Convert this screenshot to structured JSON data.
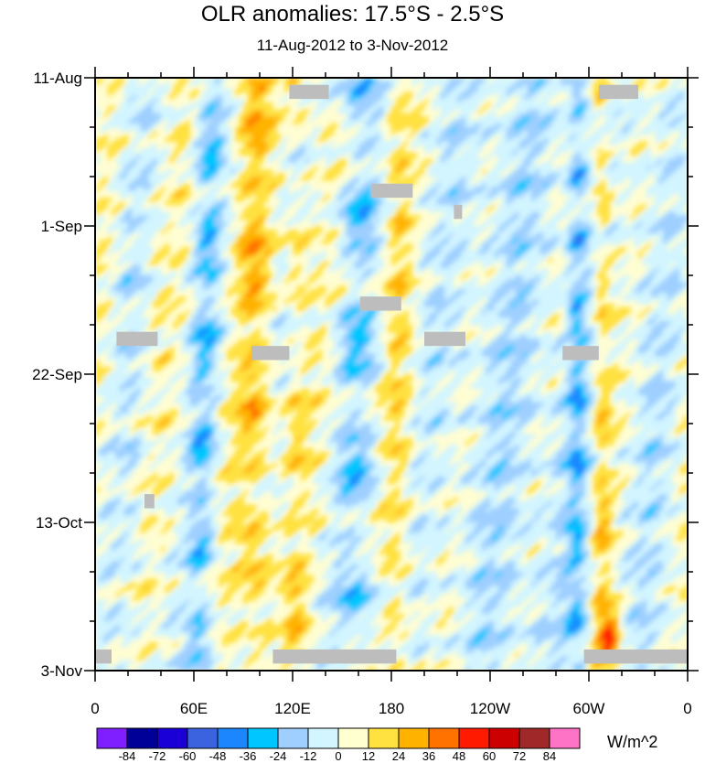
{
  "chart_data": {
    "type": "heatmap",
    "title": "OLR anomalies: 17.5°S - 2.5°S",
    "subtitle": "11-Aug-2012 to 3-Nov-2012",
    "x_tick_labels": [
      "0",
      "60E",
      "120E",
      "180",
      "120W",
      "60W",
      "0"
    ],
    "x_ticks_deg": [
      0,
      60,
      120,
      180,
      240,
      300,
      360
    ],
    "xlim": [
      0,
      360
    ],
    "y_tick_labels": [
      "11-Aug",
      "1-Sep",
      "22-Sep",
      "13-Oct",
      "3-Nov"
    ],
    "y_ticks_day": [
      0,
      21,
      42,
      63,
      84
    ],
    "ylim": [
      0,
      84
    ],
    "colorbar": {
      "units": "W/m^2",
      "labels": [
        "-84",
        "-72",
        "-60",
        "-48",
        "-36",
        "-24",
        "-12",
        "0",
        "12",
        "24",
        "36",
        "48",
        "60",
        "72",
        "84"
      ],
      "colors": [
        "#7f1fff",
        "#000099",
        "#1a00d6",
        "#3b63e0",
        "#1c86ff",
        "#00c6ff",
        "#9ecfff",
        "#d2f5ff",
        "#ffffd0",
        "#ffe140",
        "#ffb200",
        "#ff7200",
        "#ff1a00",
        "#cc0000",
        "#a02828",
        "#ff73c7"
      ]
    },
    "features": [
      {
        "name": "convective band near 60E-90E",
        "lon_center": 70,
        "anomaly": "negative"
      },
      {
        "name": "dry band near 90E-110E",
        "lon_center": 100,
        "anomaly": "positive"
      },
      {
        "name": "convective band near 150E-180",
        "lon_center": 165,
        "anomaly": "negative"
      },
      {
        "name": "convective band near 60W",
        "lon_center": 295,
        "anomaly": "negative"
      },
      {
        "name": "dry band near 55W-45W",
        "lon_center": 310,
        "anomaly": "positive"
      }
    ],
    "missing_data": [
      {
        "lon": [
          118,
          142
        ],
        "day": [
          1,
          3
        ]
      },
      {
        "lon": [
          306,
          330
        ],
        "day": [
          1,
          3
        ]
      },
      {
        "lon": [
          168,
          193
        ],
        "day": [
          15,
          17
        ]
      },
      {
        "lon": [
          218,
          223
        ],
        "day": [
          18,
          20
        ]
      },
      {
        "lon": [
          161,
          186
        ],
        "day": [
          31,
          33
        ]
      },
      {
        "lon": [
          13,
          38
        ],
        "day": [
          36,
          38
        ]
      },
      {
        "lon": [
          200,
          225
        ],
        "day": [
          36,
          38
        ]
      },
      {
        "lon": [
          95,
          118
        ],
        "day": [
          38,
          40
        ]
      },
      {
        "lon": [
          284,
          306
        ],
        "day": [
          38,
          40
        ]
      },
      {
        "lon": [
          30,
          36
        ],
        "day": [
          59,
          61
        ]
      },
      {
        "lon": [
          0,
          10
        ],
        "day": [
          81,
          83
        ]
      },
      {
        "lon": [
          108,
          183
        ],
        "day": [
          81,
          83
        ]
      },
      {
        "lon": [
          297,
          360
        ],
        "day": [
          81,
          83
        ]
      }
    ]
  }
}
